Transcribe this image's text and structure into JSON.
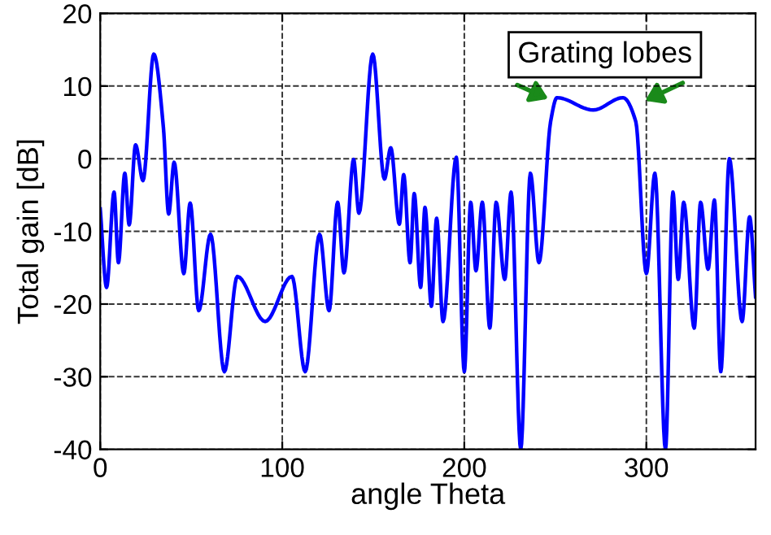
{
  "chart_data": {
    "type": "line",
    "xlabel": "angle Theta",
    "ylabel": "Total gain [dB]",
    "xlim": [
      0,
      360
    ],
    "ylim": [
      -40,
      20
    ],
    "xticks": [
      0,
      100,
      200,
      300
    ],
    "yticks": [
      -40,
      -30,
      -20,
      -10,
      0,
      10,
      20
    ],
    "grid": true,
    "line_style": "dashed",
    "annotations": [
      "Grating lobes"
    ],
    "series": [
      {
        "color": "#0000ff",
        "line_style": "solid",
        "x": [
          0,
          3.5,
          7.6,
          10,
          13.5,
          15.9,
          19.4,
          23.5,
          29.4,
          34.7,
          37.6,
          40.6,
          45.9,
          49.4,
          54.1,
          60.6,
          68.2,
          75.3,
          90.6,
          105.3,
          112.6,
          120.5,
          125.7,
          130.4,
          133.9,
          139.2,
          142.1,
          149.7,
          156.1,
          159.6,
          164.3,
          166.7,
          170.2,
          172.5,
          176,
          178.4,
          181.9,
          184.8,
          188.3,
          195.6,
          200,
          203.5,
          206.4,
          209.9,
          214,
          217.5,
          222.2,
          225.7,
          231,
          236.3,
          241,
          247.4,
          250.9,
          270.8,
          287.1,
          294.2,
          300,
          304.7,
          310.5,
          314.6,
          317.5,
          320.5,
          326.3,
          329.8,
          333.9,
          337.4,
          340.9,
          345.6,
          352.6,
          356.7,
          360
        ],
        "values": [
          -6.9,
          -17.7,
          -4.6,
          -14.3,
          -2,
          -9.1,
          1.9,
          -3,
          14.4,
          4.3,
          -7.6,
          -0.5,
          -15.8,
          -6.1,
          -20.9,
          -10.4,
          -29.3,
          -16.2,
          -22.4,
          -16.2,
          -29.3,
          -10.4,
          -20.9,
          -6,
          -15.7,
          -0.1,
          -7.5,
          14.4,
          -2.8,
          1.5,
          -9,
          -2.2,
          -14.3,
          -4.8,
          -17.7,
          -6.7,
          -20.3,
          -8.2,
          -22.4,
          0.2,
          -29.3,
          -6,
          -15.4,
          -6,
          -23.3,
          -6,
          -16.6,
          -4.6,
          -40,
          -2,
          -14.3,
          5.1,
          8.4,
          6.7,
          8.4,
          5.1,
          -15.8,
          -2,
          -40,
          -4.6,
          -16.6,
          -6,
          -23.3,
          -6,
          -15.2,
          -5.7,
          -29.3,
          0,
          -22.4,
          -8,
          -19
        ]
      }
    ]
  }
}
